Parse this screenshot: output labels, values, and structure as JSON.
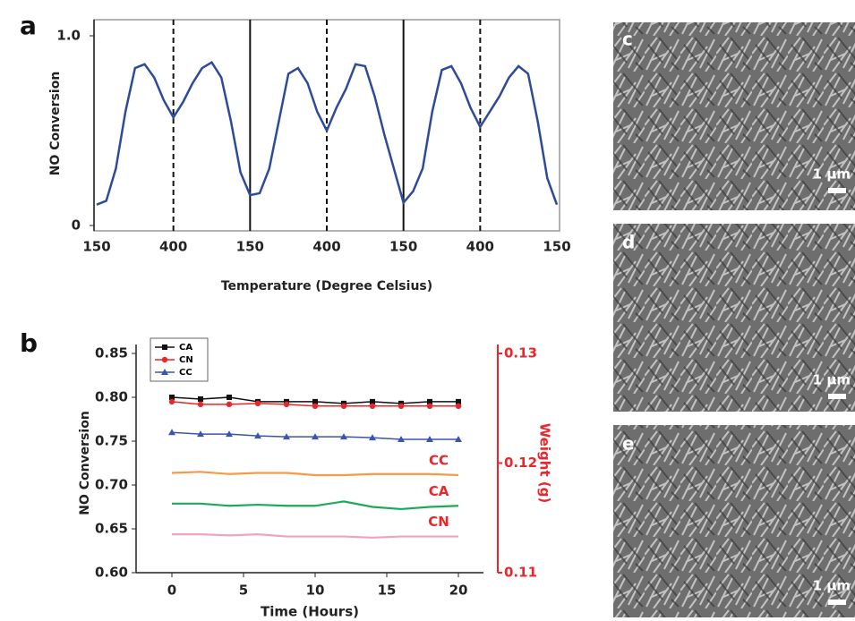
{
  "chart_data": [
    {
      "type": "line",
      "panel_label": "a",
      "x_label": "Temperature (Degree Celsius)",
      "y_label": "NO Conversion",
      "categories": [
        "150",
        null,
        null,
        null,
        null,
        null,
        null,
        null,
        "400",
        null,
        null,
        null,
        null,
        null,
        null,
        null,
        "150",
        null,
        null,
        null,
        null,
        null,
        null,
        null,
        "400",
        null,
        null,
        null,
        null,
        null,
        null,
        null,
        "150",
        null,
        null,
        null,
        null,
        null,
        null,
        null,
        "400",
        null,
        null,
        null,
        null,
        null,
        null,
        null,
        "150"
      ],
      "values": [
        0.11,
        0.13,
        0.3,
        0.6,
        0.83,
        0.85,
        0.78,
        0.66,
        0.57,
        0.65,
        0.75,
        0.83,
        0.86,
        0.78,
        0.55,
        0.28,
        0.16,
        0.17,
        0.3,
        0.55,
        0.8,
        0.83,
        0.75,
        0.6,
        0.5,
        0.62,
        0.72,
        0.85,
        0.84,
        0.68,
        0.48,
        0.3,
        0.12,
        0.18,
        0.3,
        0.6,
        0.82,
        0.84,
        0.75,
        0.62,
        0.52,
        0.6,
        0.68,
        0.78,
        0.84,
        0.8,
        0.55,
        0.25,
        0.11
      ],
      "color": "#2e4a9a",
      "ylim": [
        0,
        1
      ],
      "yticks": [
        0,
        {
          "value": 1,
          "label": "1.0"
        }
      ],
      "cycle_lines": true
    },
    {
      "type": "line",
      "panel_label": "b",
      "x_label": "Time (Hours)",
      "y_label": "NO Conversion",
      "y2_label": "Weight (g)",
      "y2_color": "#e8262b",
      "x": [
        0,
        2,
        4,
        6,
        8,
        10,
        12,
        14,
        16,
        18,
        20
      ],
      "xlim": [
        -2.5,
        21.75
      ],
      "xticks": [
        0,
        5,
        10,
        15,
        20
      ],
      "ylim": [
        0.6,
        0.85
      ],
      "yticks": [
        {
          "value": 0.6,
          "label": "0.60"
        },
        0.65,
        {
          "value": 0.7,
          "label": "0.70"
        },
        0.75,
        {
          "value": 0.8,
          "label": "0.80"
        },
        0.85
      ],
      "y2lim": [
        0.11,
        0.13
      ],
      "y2ticks": [
        0.11,
        0.12,
        0.13
      ],
      "legend": "upper left",
      "series": [
        {
          "name": "CA",
          "color": "#111111",
          "marker": "square",
          "values": [
            0.8,
            0.798,
            0.8,
            0.795,
            0.795,
            0.795,
            0.793,
            0.795,
            0.793,
            0.795,
            0.795
          ]
        },
        {
          "name": "CN",
          "color": "#e8262b",
          "marker": "circle",
          "values": [
            0.795,
            0.792,
            0.792,
            0.793,
            0.792,
            0.79,
            0.79,
            0.79,
            0.79,
            0.79,
            0.79
          ]
        },
        {
          "name": "CC",
          "color": "#3a56a8",
          "marker": "triangle",
          "values": [
            0.76,
            0.758,
            0.758,
            0.756,
            0.755,
            0.755,
            0.755,
            0.754,
            0.752,
            0.752,
            0.752
          ]
        },
        {
          "name": "CC",
          "color": "#f59a4a",
          "axis": "y2",
          "values": [
            0.1191,
            0.1192,
            0.119,
            0.1191,
            0.1191,
            0.1189,
            0.1189,
            0.119,
            0.119,
            0.119,
            0.1189
          ]
        },
        {
          "name": "CA",
          "color": "#1fa85a",
          "axis": "y2",
          "values": [
            0.1163,
            0.1163,
            0.1161,
            0.1162,
            0.1161,
            0.1161,
            0.1165,
            0.116,
            0.1158,
            0.116,
            0.1161
          ]
        },
        {
          "name": "CN",
          "color": "#f4a0c0",
          "axis": "y2",
          "values": [
            0.1135,
            0.1135,
            0.1134,
            0.1135,
            0.1133,
            0.1133,
            0.1133,
            0.1132,
            0.1133,
            0.1133,
            0.1133
          ]
        }
      ]
    }
  ],
  "images": [
    {
      "label": "c",
      "scale_label": "1 μm"
    },
    {
      "label": "d",
      "scale_label": "1 μm"
    },
    {
      "label": "e",
      "scale_label": "1 μm"
    }
  ]
}
